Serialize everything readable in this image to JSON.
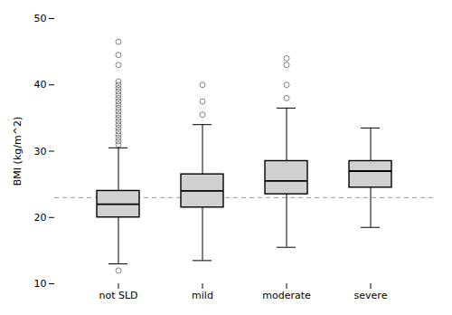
{
  "chart_data": {
    "type": "box",
    "categories": [
      "not SLD",
      "mild",
      "moderate",
      "severe"
    ],
    "boxes": [
      {
        "q1": 20.0,
        "median": 22.0,
        "q3": 24.0,
        "whisker_low": 13.0,
        "whisker_high": 30.5,
        "outliers": [
          31.0,
          31.5,
          32.0,
          32.5,
          33.0,
          33.5,
          34.0,
          34.5,
          35.0,
          35.5,
          36.0,
          36.5,
          37.0,
          37.5,
          38.0,
          38.5,
          39.0,
          39.5,
          40.0,
          40.5,
          43.0,
          44.5,
          46.5,
          12.0
        ]
      },
      {
        "q1": 21.5,
        "median": 24.0,
        "q3": 26.5,
        "whisker_low": 13.5,
        "whisker_high": 34.0,
        "outliers": [
          35.5,
          37.5,
          40.0
        ]
      },
      {
        "q1": 23.5,
        "median": 25.5,
        "q3": 28.5,
        "whisker_low": 15.5,
        "whisker_high": 36.5,
        "outliers": [
          38.0,
          40.0,
          43.0,
          44.0
        ]
      },
      {
        "q1": 24.5,
        "median": 27.0,
        "q3": 28.5,
        "whisker_low": 18.5,
        "whisker_high": 33.5,
        "outliers": []
      }
    ],
    "reference_line": 23.0,
    "ylabel": "BMI (kg/m^2)",
    "ylim": [
      10,
      50
    ],
    "yticks": [
      10,
      20,
      30,
      40,
      50
    ],
    "color": "#d0d0d0",
    "grid": false
  }
}
